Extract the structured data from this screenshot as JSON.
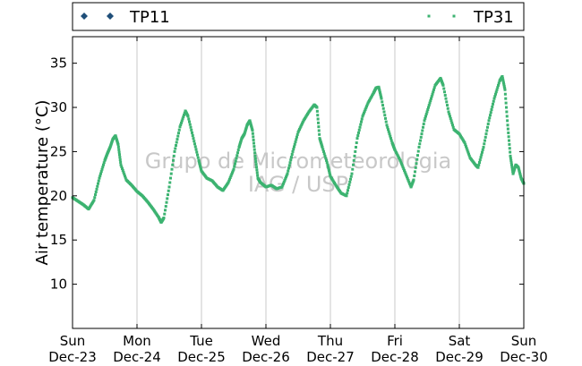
{
  "chart_data": {
    "type": "scatter",
    "title": "",
    "xlabel": "",
    "ylabel": "Air temperature (°C)",
    "x_ticks": [
      {
        "day": "Sun",
        "date": "Dec-23"
      },
      {
        "day": "Mon",
        "date": "Dec-24"
      },
      {
        "day": "Tue",
        "date": "Dec-25"
      },
      {
        "day": "Wed",
        "date": "Dec-26"
      },
      {
        "day": "Thu",
        "date": "Dec-27"
      },
      {
        "day": "Fri",
        "date": "Dec-28"
      },
      {
        "day": "Sat",
        "date": "Dec-29"
      },
      {
        "day": "Sun",
        "date": "Dec-30"
      }
    ],
    "x_range": [
      "Dec-23 00:00",
      "Dec-30 00:00"
    ],
    "ylim": [
      5,
      38
    ],
    "y_ticks": [
      10,
      15,
      20,
      25,
      30,
      35
    ],
    "grid": "vertical lines at day boundaries",
    "legend_position": "top, outside plot",
    "legend": [
      {
        "name": "TP11",
        "color": "#1f4e79",
        "marker": "diamond"
      },
      {
        "name": "TP31",
        "color": "#3cb371",
        "marker": "square"
      }
    ],
    "watermark": [
      "Grupo de Micrometeorologia",
      "IAG / USP"
    ],
    "series": [
      {
        "name": "TP11",
        "color": "#1f4e79",
        "points": []
      },
      {
        "name": "TP31",
        "color": "#3cb371",
        "points": [
          [
            "Dec-23 00:00",
            19.8
          ],
          [
            "Dec-23 02:00",
            19.4
          ],
          [
            "Dec-23 04:00",
            19.0
          ],
          [
            "Dec-23 06:00",
            18.5
          ],
          [
            "Dec-23 08:00",
            19.5
          ],
          [
            "Dec-23 10:00",
            22.0
          ],
          [
            "Dec-23 12:00",
            24.0
          ],
          [
            "Dec-23 13:00",
            24.8
          ],
          [
            "Dec-23 14:00",
            25.5
          ],
          [
            "Dec-23 15:00",
            26.4
          ],
          [
            "Dec-23 16:00",
            26.8
          ],
          [
            "Dec-23 17:00",
            25.8
          ],
          [
            "Dec-23 18:00",
            23.5
          ],
          [
            "Dec-23 20:00",
            21.8
          ],
          [
            "Dec-23 22:00",
            21.2
          ],
          [
            "Dec-24 00:00",
            20.5
          ],
          [
            "Dec-24 02:00",
            20.0
          ],
          [
            "Dec-24 04:00",
            19.3
          ],
          [
            "Dec-24 06:00",
            18.5
          ],
          [
            "Dec-24 08:00",
            17.6
          ],
          [
            "Dec-24 09:00",
            17.0
          ],
          [
            "Dec-24 10:00",
            17.5
          ],
          [
            "Dec-24 12:00",
            21.0
          ],
          [
            "Dec-24 14:00",
            25.0
          ],
          [
            "Dec-24 16:00",
            27.8
          ],
          [
            "Dec-24 18:00",
            29.6
          ],
          [
            "Dec-24 19:00",
            29.0
          ],
          [
            "Dec-24 21:00",
            26.5
          ],
          [
            "Dec-24 23:00",
            24.0
          ],
          [
            "Dec-25 00:00",
            22.8
          ],
          [
            "Dec-25 02:00",
            22.0
          ],
          [
            "Dec-25 04:00",
            21.7
          ],
          [
            "Dec-25 06:00",
            21.0
          ],
          [
            "Dec-25 08:00",
            20.6
          ],
          [
            "Dec-25 10:00",
            21.5
          ],
          [
            "Dec-25 12:00",
            23.0
          ],
          [
            "Dec-25 14:00",
            25.5
          ],
          [
            "Dec-25 15:00",
            26.5
          ],
          [
            "Dec-25 16:00",
            27.0
          ],
          [
            "Dec-25 17:00",
            28.0
          ],
          [
            "Dec-25 18:00",
            28.5
          ],
          [
            "Dec-25 19:00",
            27.4
          ],
          [
            "Dec-25 20:00",
            24.5
          ],
          [
            "Dec-25 21:00",
            22.0
          ],
          [
            "Dec-25 22:00",
            21.5
          ],
          [
            "Dec-26 00:00",
            21.0
          ],
          [
            "Dec-26 02:00",
            21.2
          ],
          [
            "Dec-26 04:00",
            20.8
          ],
          [
            "Dec-26 06:00",
            21.0
          ],
          [
            "Dec-26 08:00",
            22.5
          ],
          [
            "Dec-26 10:00",
            25.0
          ],
          [
            "Dec-26 12:00",
            27.2
          ],
          [
            "Dec-26 14:00",
            28.5
          ],
          [
            "Dec-26 16:00",
            29.5
          ],
          [
            "Dec-26 18:00",
            30.3
          ],
          [
            "Dec-26 19:00",
            30.0
          ],
          [
            "Dec-26 20:00",
            26.5
          ],
          [
            "Dec-26 21:00",
            25.5
          ],
          [
            "Dec-26 23:00",
            23.5
          ],
          [
            "Dec-27 00:00",
            22.2
          ],
          [
            "Dec-27 02:00",
            21.2
          ],
          [
            "Dec-27 04:00",
            20.3
          ],
          [
            "Dec-27 06:00",
            20.0
          ],
          [
            "Dec-27 08:00",
            22.5
          ],
          [
            "Dec-27 10:00",
            26.5
          ],
          [
            "Dec-27 12:00",
            29.0
          ],
          [
            "Dec-27 14:00",
            30.5
          ],
          [
            "Dec-27 16:00",
            31.6
          ],
          [
            "Dec-27 17:00",
            32.2
          ],
          [
            "Dec-27 18:00",
            32.3
          ],
          [
            "Dec-27 19:00",
            31.0
          ],
          [
            "Dec-27 21:00",
            28.0
          ],
          [
            "Dec-27 23:00",
            26.0
          ],
          [
            "Dec-28 00:00",
            25.2
          ],
          [
            "Dec-28 02:00",
            24.0
          ],
          [
            "Dec-28 04:00",
            22.5
          ],
          [
            "Dec-28 06:00",
            21.0
          ],
          [
            "Dec-28 07:00",
            21.8
          ],
          [
            "Dec-28 09:00",
            25.5
          ],
          [
            "Dec-28 11:00",
            28.5
          ],
          [
            "Dec-28 13:00",
            30.5
          ],
          [
            "Dec-28 15:00",
            32.5
          ],
          [
            "Dec-28 17:00",
            33.3
          ],
          [
            "Dec-28 18:00",
            32.5
          ],
          [
            "Dec-28 20:00",
            29.5
          ],
          [
            "Dec-28 22:00",
            27.5
          ],
          [
            "Dec-29 00:00",
            27.0
          ],
          [
            "Dec-29 02:00",
            26.0
          ],
          [
            "Dec-29 04:00",
            24.3
          ],
          [
            "Dec-29 06:00",
            23.5
          ],
          [
            "Dec-29 07:00",
            23.2
          ],
          [
            "Dec-29 09:00",
            25.5
          ],
          [
            "Dec-29 11:00",
            28.5
          ],
          [
            "Dec-29 13:00",
            31.0
          ],
          [
            "Dec-29 15:00",
            33.0
          ],
          [
            "Dec-29 16:00",
            33.5
          ],
          [
            "Dec-29 17:00",
            32.0
          ],
          [
            "Dec-29 18:00",
            28.0
          ],
          [
            "Dec-29 19:00",
            24.5
          ],
          [
            "Dec-29 20:00",
            22.5
          ],
          [
            "Dec-29 21:00",
            23.5
          ],
          [
            "Dec-29 22:00",
            23.2
          ],
          [
            "Dec-29 23:00",
            22.0
          ],
          [
            "Dec-30 00:00",
            21.4
          ]
        ]
      }
    ]
  }
}
